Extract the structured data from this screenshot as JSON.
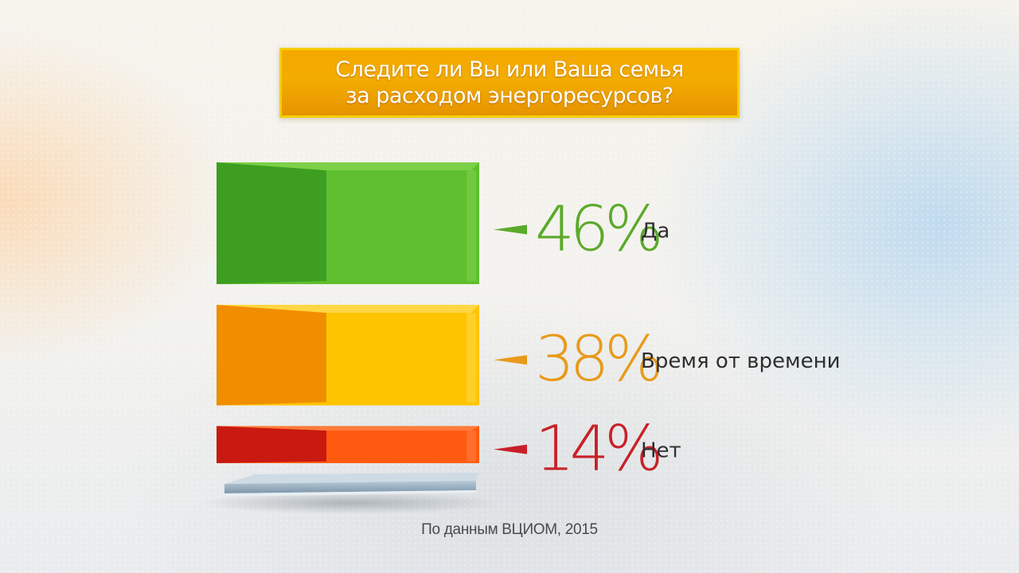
{
  "title": {
    "line1": "Следите ли Вы или Ваша семья",
    "line2": "за расходом энергоресурсов?"
  },
  "chart_data": {
    "type": "bar",
    "categories": [
      "Да",
      "Время от времени",
      "Нет"
    ],
    "values": [
      46,
      38,
      14
    ],
    "value_labels": [
      "46%",
      "38%",
      "14%"
    ],
    "unit": "%",
    "colors": {
      "front": [
        "#5fbf2e",
        "#ffc400",
        "#ff5a10"
      ],
      "side": [
        "#3e9e22",
        "#f08e00",
        "#c81a10"
      ],
      "top": [
        "#7fd24a",
        "#ffd84a",
        "#ff8040"
      ],
      "label": [
        "#5aaa2a",
        "#e89a1a",
        "#c82028"
      ]
    }
  },
  "source": "По данным ВЦИОМ, 2015"
}
